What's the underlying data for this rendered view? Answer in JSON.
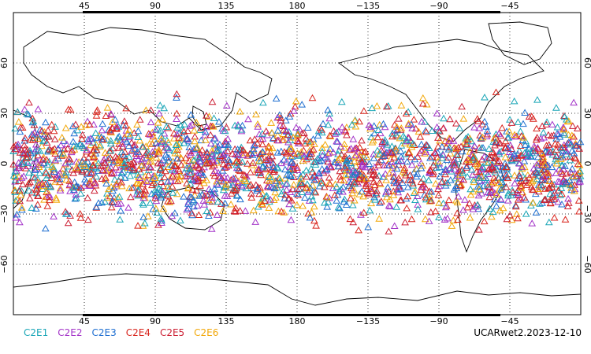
{
  "chart_data": {
    "type": "scatter",
    "title": "",
    "projection": "equirectangular, centered on 180 (Pacific-centered)",
    "xlabel": "",
    "ylabel": "",
    "xlim_lon": [
      0,
      360
    ],
    "ylim_lat": [
      -90,
      90
    ],
    "grid": "dotted",
    "marker": "open-triangle",
    "x_ticks": [
      "45",
      "90",
      "135",
      "180",
      "−135",
      "−90",
      "−45"
    ],
    "y_ticks_left": [
      "60",
      "30",
      "0",
      "−30",
      "−60"
    ],
    "y_ticks_right": [
      "60",
      "30",
      "0",
      "−30",
      "−60"
    ],
    "lat_extent_of_points": [
      -47,
      45
    ],
    "series": [
      {
        "name": "C2E1",
        "color": "#1aa6b7"
      },
      {
        "name": "C2E2",
        "color": "#a333c8"
      },
      {
        "name": "C2E3",
        "color": "#1f6fd1"
      },
      {
        "name": "C2E4",
        "color": "#d8251d"
      },
      {
        "name": "C2E5",
        "color": "#cc1f33"
      },
      {
        "name": "C2E6",
        "color": "#f2a80a"
      }
    ]
  },
  "legend_items": [
    "C2E1",
    "C2E2",
    "C2E3",
    "C2E4",
    "C2E5",
    "C2E6"
  ],
  "footer_label": "UCARwet2.2023-12-10"
}
